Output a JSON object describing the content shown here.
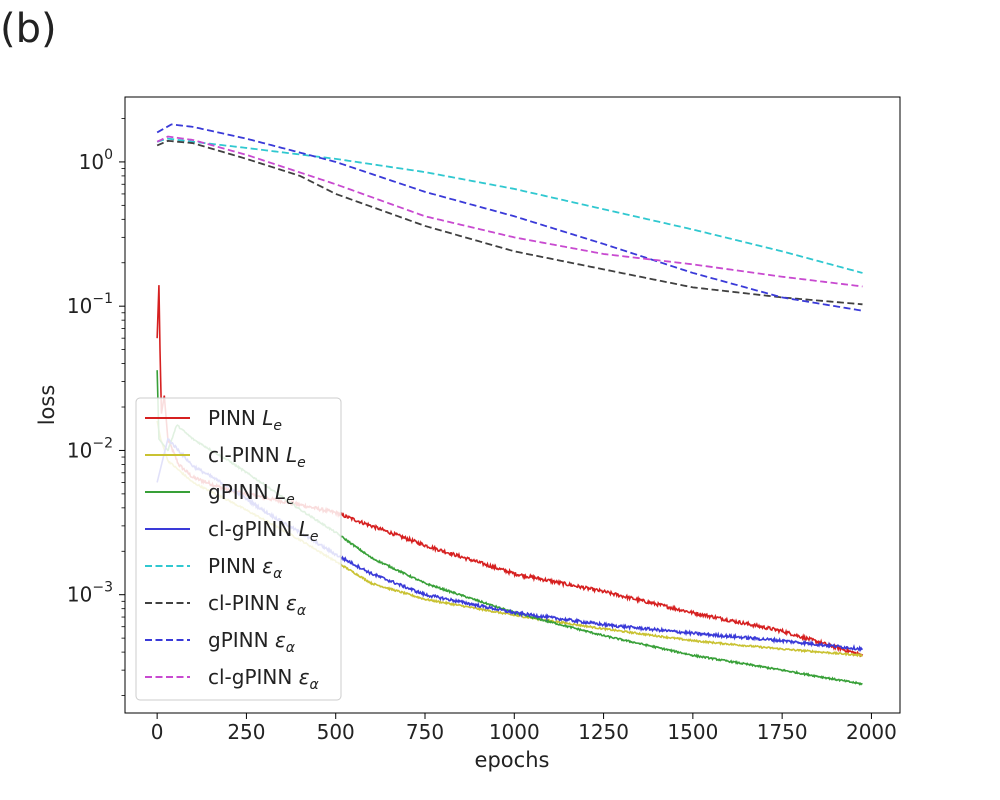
{
  "panel_label": "(b)",
  "chart_data": {
    "type": "line",
    "title": "",
    "xlabel": "epochs",
    "ylabel": "loss",
    "xlim": [
      -90,
      2080
    ],
    "ylim_log10": [
      -3.82,
      0.45
    ],
    "yscale": "log",
    "x_ticks": [
      0,
      250,
      500,
      750,
      1000,
      1250,
      1500,
      1750,
      2000
    ],
    "x_tick_labels": [
      "0",
      "250",
      "500",
      "750",
      "1000",
      "1250",
      "1500",
      "1750",
      "2000"
    ],
    "y_ticks_log10": [
      0,
      -1,
      -2,
      -3
    ],
    "y_tick_labels": [
      {
        "base": "10",
        "exp": "0"
      },
      {
        "base": "10",
        "exp": "−1"
      },
      {
        "base": "10",
        "exp": "−2"
      },
      {
        "base": "10",
        "exp": "−3"
      }
    ],
    "legend_position": "lower-left",
    "series": [
      {
        "name": "PINN",
        "sym": "L",
        "sub": "e",
        "color": "#d62020",
        "style": "solid",
        "noise": 0.012,
        "points": [
          [
            0,
            0.06
          ],
          [
            5,
            0.14
          ],
          [
            8,
            0.05
          ],
          [
            12,
            0.018
          ],
          [
            20,
            0.024
          ],
          [
            30,
            0.012
          ],
          [
            60,
            0.008
          ],
          [
            100,
            0.0065
          ],
          [
            200,
            0.0053
          ],
          [
            300,
            0.0047
          ],
          [
            400,
            0.0042
          ],
          [
            500,
            0.0037
          ],
          [
            600,
            0.003
          ],
          [
            750,
            0.0022
          ],
          [
            1000,
            0.0014
          ],
          [
            1250,
            0.00105
          ],
          [
            1500,
            0.00075
          ],
          [
            1750,
            0.00056
          ],
          [
            1975,
            0.00038
          ]
        ]
      },
      {
        "name": "cl-PINN",
        "sym": "L",
        "sub": "e",
        "color": "#c9c232",
        "style": "solid",
        "noise": 0.006,
        "points": [
          [
            0,
            0.016
          ],
          [
            10,
            0.012
          ],
          [
            30,
            0.0085
          ],
          [
            100,
            0.006
          ],
          [
            200,
            0.0045
          ],
          [
            300,
            0.0033
          ],
          [
            400,
            0.0024
          ],
          [
            500,
            0.0017
          ],
          [
            600,
            0.0012
          ],
          [
            750,
            0.00093
          ],
          [
            1000,
            0.00072
          ],
          [
            1250,
            0.00058
          ],
          [
            1500,
            0.00048
          ],
          [
            1750,
            0.00042
          ],
          [
            1975,
            0.00038
          ]
        ]
      },
      {
        "name": "gPINN",
        "sym": "L",
        "sub": "e",
        "color": "#38a038",
        "style": "solid",
        "noise": 0.006,
        "points": [
          [
            0,
            0.036
          ],
          [
            5,
            0.012
          ],
          [
            30,
            0.01
          ],
          [
            55,
            0.015
          ],
          [
            100,
            0.012
          ],
          [
            200,
            0.0085
          ],
          [
            300,
            0.0058
          ],
          [
            400,
            0.0039
          ],
          [
            500,
            0.0027
          ],
          [
            600,
            0.0018
          ],
          [
            750,
            0.0012
          ],
          [
            1000,
            0.00075
          ],
          [
            1250,
            0.00052
          ],
          [
            1500,
            0.00038
          ],
          [
            1750,
            0.0003
          ],
          [
            1975,
            0.00024
          ]
        ]
      },
      {
        "name": "cl-gPINN",
        "sym": "L",
        "sub": "e",
        "color": "#3a3ad8",
        "style": "solid",
        "noise": 0.01,
        "points": [
          [
            0,
            0.006
          ],
          [
            15,
            0.0085
          ],
          [
            30,
            0.012
          ],
          [
            45,
            0.011
          ],
          [
            100,
            0.0078
          ],
          [
            200,
            0.0056
          ],
          [
            300,
            0.0038
          ],
          [
            400,
            0.0027
          ],
          [
            500,
            0.0019
          ],
          [
            600,
            0.0014
          ],
          [
            750,
            0.001
          ],
          [
            1000,
            0.00075
          ],
          [
            1250,
            0.00062
          ],
          [
            1500,
            0.00054
          ],
          [
            1750,
            0.00048
          ],
          [
            1975,
            0.00042
          ]
        ]
      },
      {
        "name": "PINN",
        "sym": "ε",
        "sub": "α",
        "color": "#30c8d0",
        "style": "dashed",
        "noise": 0,
        "points": [
          [
            0,
            1.38
          ],
          [
            30,
            1.45
          ],
          [
            100,
            1.38
          ],
          [
            250,
            1.25
          ],
          [
            500,
            1.05
          ],
          [
            750,
            0.85
          ],
          [
            1000,
            0.65
          ],
          [
            1250,
            0.47
          ],
          [
            1500,
            0.34
          ],
          [
            1750,
            0.24
          ],
          [
            1975,
            0.17
          ]
        ]
      },
      {
        "name": "cl-PINN",
        "sym": "ε",
        "sub": "α",
        "color": "#404040",
        "style": "dashed",
        "noise": 0,
        "points": [
          [
            0,
            1.3
          ],
          [
            30,
            1.4
          ],
          [
            100,
            1.35
          ],
          [
            250,
            1.05
          ],
          [
            400,
            0.8
          ],
          [
            500,
            0.6
          ],
          [
            750,
            0.36
          ],
          [
            1000,
            0.24
          ],
          [
            1250,
            0.18
          ],
          [
            1500,
            0.135
          ],
          [
            1750,
            0.115
          ],
          [
            1975,
            0.103
          ]
        ]
      },
      {
        "name": "gPINN",
        "sym": "ε",
        "sub": "α",
        "color": "#3a3ad8",
        "style": "dashed",
        "noise": 0,
        "points": [
          [
            0,
            1.6
          ],
          [
            40,
            1.82
          ],
          [
            100,
            1.75
          ],
          [
            250,
            1.45
          ],
          [
            500,
            1.0
          ],
          [
            750,
            0.62
          ],
          [
            1000,
            0.42
          ],
          [
            1250,
            0.27
          ],
          [
            1500,
            0.17
          ],
          [
            1750,
            0.115
          ],
          [
            1975,
            0.093
          ]
        ]
      },
      {
        "name": "cl-gPINN",
        "sym": "ε",
        "sub": "α",
        "color": "#c84ad0",
        "style": "dashed",
        "noise": 0,
        "points": [
          [
            0,
            1.38
          ],
          [
            30,
            1.5
          ],
          [
            100,
            1.42
          ],
          [
            250,
            1.12
          ],
          [
            500,
            0.7
          ],
          [
            750,
            0.42
          ],
          [
            1000,
            0.3
          ],
          [
            1250,
            0.23
          ],
          [
            1500,
            0.195
          ],
          [
            1750,
            0.16
          ],
          [
            1975,
            0.137
          ]
        ]
      }
    ]
  }
}
